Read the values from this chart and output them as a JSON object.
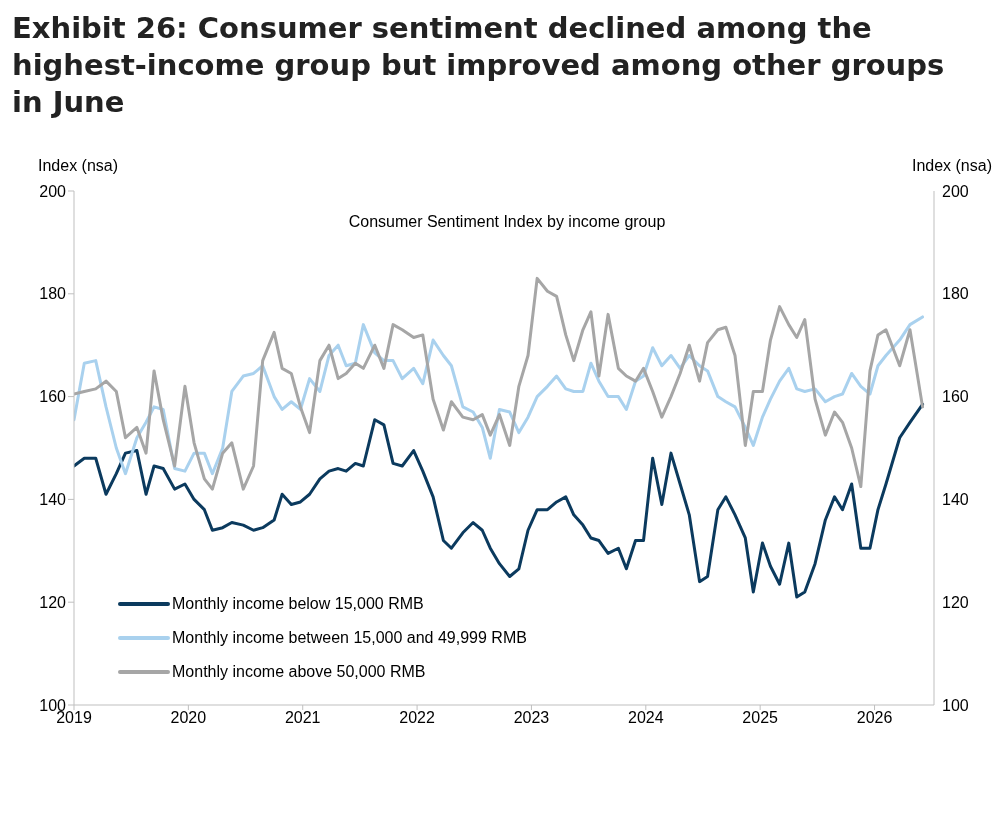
{
  "chart_data": {
    "type": "line",
    "title": "Exhibit 26: Consumer sentiment declined among the highest-income group but improved among other groups in June",
    "subtitle": "Consumer Sentiment Index by income group",
    "ylabel": "Index (nsa)",
    "y2label": "Index (nsa)",
    "x": [
      2019.0,
      2019.09,
      2019.19,
      2019.28,
      2019.37,
      2019.45,
      2019.55,
      2019.63,
      2019.7,
      2019.78,
      2019.88,
      2019.97,
      2020.05,
      2020.14,
      2020.21,
      2020.3,
      2020.38,
      2020.48,
      2020.57,
      2020.65,
      2020.75,
      2020.82,
      2020.9,
      2020.98,
      2021.06,
      2021.15,
      2021.23,
      2021.31,
      2021.38,
      2021.46,
      2021.53,
      2021.63,
      2021.71,
      2021.79,
      2021.87,
      2021.97,
      2022.05,
      2022.14,
      2022.23,
      2022.3,
      2022.4,
      2022.49,
      2022.57,
      2022.64,
      2022.72,
      2022.81,
      2022.89,
      2022.97,
      2023.05,
      2023.14,
      2023.22,
      2023.3,
      2023.37,
      2023.45,
      2023.52,
      2023.59,
      2023.67,
      2023.76,
      2023.83,
      2023.91,
      2023.98,
      2024.06,
      2024.14,
      2024.22,
      2024.3,
      2024.38,
      2024.47,
      2024.54,
      2024.63,
      2024.7,
      2024.78,
      2024.87,
      2024.94,
      2025.02,
      2025.09,
      2025.17,
      2025.25,
      2025.32,
      2025.39,
      2025.48,
      2025.57,
      2025.65,
      2025.72,
      2025.8,
      2025.88,
      2025.96,
      2026.03,
      2026.1,
      2026.22,
      2026.31,
      2026.42
    ],
    "series": [
      {
        "name": "Monthly income below 15,000 RMB",
        "color": "#0b3a5e",
        "values": [
          146.5,
          148,
          148,
          141,
          145,
          149,
          149.5,
          141,
          146.5,
          146,
          142,
          143,
          140,
          138,
          134,
          134.5,
          135.5,
          135,
          134,
          134.5,
          136,
          141,
          139,
          139.5,
          141,
          144,
          145.5,
          146,
          145.5,
          147,
          146.5,
          155.5,
          154.5,
          147,
          146.5,
          149.5,
          145.5,
          140.5,
          132,
          130.5,
          133.5,
          135.5,
          134,
          130.5,
          127.5,
          125,
          126.5,
          134,
          138,
          138,
          139.5,
          140.5,
          137,
          135,
          132.5,
          132,
          129.5,
          130.5,
          126.5,
          132,
          132,
          148,
          139,
          149,
          143,
          137,
          124,
          125,
          138,
          140.5,
          137,
          132.5,
          122,
          131.5,
          127,
          123.5,
          131.5,
          121,
          122,
          127.5,
          136,
          140.5,
          138,
          143,
          130.5,
          130.5,
          138,
          143,
          152,
          155,
          158.5
        ]
      },
      {
        "name": "Monthly income between 15,000 and 49,999 RMB",
        "color": "#a9d1ee",
        "values": [
          155.5,
          166.5,
          167,
          158,
          150,
          145,
          152,
          155,
          158,
          157.5,
          146,
          145.5,
          149,
          149,
          145,
          150,
          161,
          164,
          164.5,
          166,
          160,
          157.5,
          159,
          157.5,
          163.5,
          161,
          168,
          170,
          166,
          166.5,
          174,
          168.5,
          167,
          167,
          163.5,
          165.5,
          162.5,
          171,
          168,
          166,
          158,
          157,
          154,
          148,
          157.5,
          157,
          153,
          156,
          160,
          162,
          164,
          161.5,
          161,
          161,
          166.5,
          163,
          160,
          160,
          157.5,
          163,
          164,
          169.5,
          166,
          168,
          165.5,
          168,
          166,
          165,
          160,
          159,
          158,
          154,
          150.5,
          156,
          159.5,
          163,
          165.5,
          161.5,
          161,
          161.5,
          159,
          160,
          160.5,
          164.5,
          162,
          160.5,
          166,
          168,
          171,
          174,
          175.5
        ]
      },
      {
        "name": "Monthly income above 50,000 RMB",
        "color": "#a6a6a6",
        "values": [
          160.5,
          161,
          161.5,
          163,
          161,
          152,
          154,
          149,
          165,
          155.5,
          146.5,
          162,
          151,
          144,
          142,
          149,
          151,
          142,
          146.5,
          167,
          172.5,
          165.5,
          164.5,
          158,
          153,
          167,
          170,
          163.5,
          164.5,
          166.5,
          165.5,
          170,
          165.5,
          174,
          173,
          171.5,
          172,
          159.5,
          153.5,
          159,
          156,
          155.5,
          156.5,
          152.5,
          156.5,
          150.5,
          162,
          168,
          183,
          180.5,
          179.5,
          172,
          167,
          173,
          176.5,
          164,
          176,
          165.5,
          164,
          163,
          165.5,
          161,
          156,
          160,
          164.5,
          170,
          163,
          170.5,
          173,
          173.5,
          168,
          150.5,
          161,
          161,
          171,
          177.5,
          174,
          171.5,
          175,
          159.5,
          152.5,
          157,
          155,
          150,
          142.5,
          165,
          172,
          173,
          166,
          173,
          158
        ]
      }
    ],
    "xlim": [
      2019,
      2026.52
    ],
    "xticks": [
      2019,
      2020,
      2021,
      2022,
      2023,
      2024,
      2025,
      2026
    ],
    "ylim": [
      100,
      200
    ],
    "yticks": [
      100,
      120,
      140,
      160,
      180,
      200
    ],
    "y2lim": [
      100,
      200
    ],
    "y2ticks": [
      100,
      120,
      140,
      160,
      180,
      200
    ],
    "grid": false,
    "legend": "bottom left",
    "marker": "none",
    "line_style": "solid"
  }
}
